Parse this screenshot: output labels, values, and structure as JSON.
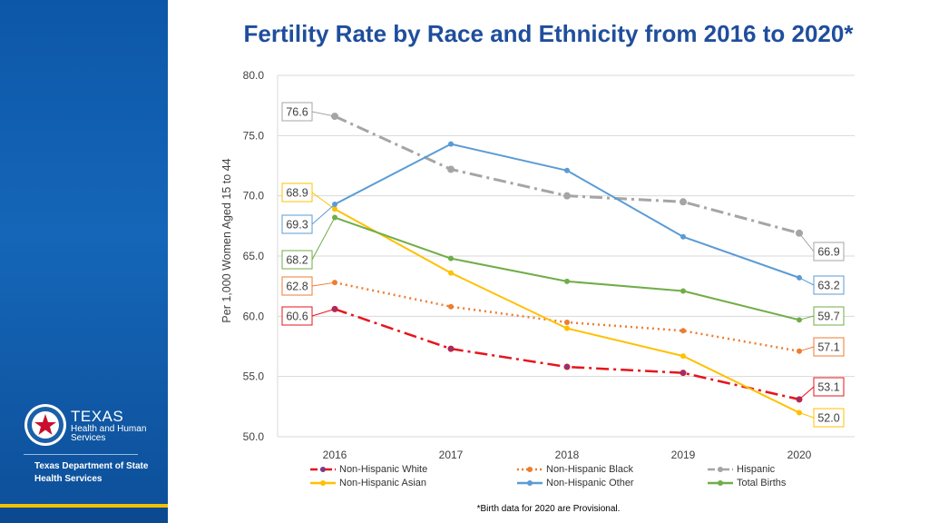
{
  "page": {
    "title": "Fertility Rate by Race and Ethnicity from 2016 to 2020*",
    "footnote": "*Birth data for 2020 are Provisional."
  },
  "sidebar": {
    "logo_title": "TEXAS",
    "logo_sub1": "Health and Human",
    "logo_sub2": "Services",
    "dept_line1": "Texas Department of State",
    "dept_line2": "Health Services",
    "colors": {
      "blue": "#0d57a8",
      "gold": "#f2c200"
    }
  },
  "chart_data": {
    "type": "line",
    "title": "Fertility Rate by Race and Ethnicity from 2016 to 2020*",
    "xlabel": "",
    "ylabel": "Per 1,000 Women Aged 15 to 44",
    "categories": [
      "2016",
      "2017",
      "2018",
      "2019",
      "2020"
    ],
    "ylim": [
      50,
      80
    ],
    "yticks": [
      "50.0",
      "55.0",
      "60.0",
      "65.0",
      "70.0",
      "75.0",
      "80.0"
    ],
    "grid": true,
    "legend_position": "bottom",
    "series": [
      {
        "name": "Non-Hispanic  White",
        "color": "#e8141c",
        "dash": "dashdot",
        "width": 2.5,
        "values": [
          60.6,
          57.3,
          55.8,
          55.3,
          53.1
        ],
        "label_start": "60.6",
        "label_end": "53.1"
      },
      {
        "name": "Non-Hispanic  Black",
        "color": "#ed7d31",
        "dash": "dot",
        "width": 2.5,
        "values": [
          62.8,
          60.8,
          59.5,
          58.8,
          57.1
        ],
        "label_start": "62.8",
        "label_end": "57.1"
      },
      {
        "name": "Hispanic",
        "color": "#a5a5a5",
        "dash": "dashdot",
        "width": 3,
        "values": [
          76.6,
          72.2,
          70.0,
          69.5,
          66.9
        ],
        "label_start": "76.6",
        "label_end": "66.9"
      },
      {
        "name": "Non-Hispanic Asian",
        "color": "#ffc000",
        "dash": "solid",
        "width": 2,
        "values": [
          68.9,
          63.6,
          59.0,
          56.7,
          52.0
        ],
        "label_start": "68.9",
        "label_end": "52.0"
      },
      {
        "name": "Non-Hispanic Other",
        "color": "#5b9bd5",
        "dash": "solid",
        "width": 2,
        "values": [
          69.3,
          74.3,
          72.1,
          66.6,
          63.2
        ],
        "label_start": "69.3",
        "label_end": "63.2"
      },
      {
        "name": "Total Births",
        "color": "#70ad47",
        "dash": "solid",
        "width": 2,
        "values": [
          68.2,
          64.8,
          62.9,
          62.1,
          59.7
        ],
        "label_start": "68.2",
        "label_end": "59.7"
      }
    ]
  }
}
